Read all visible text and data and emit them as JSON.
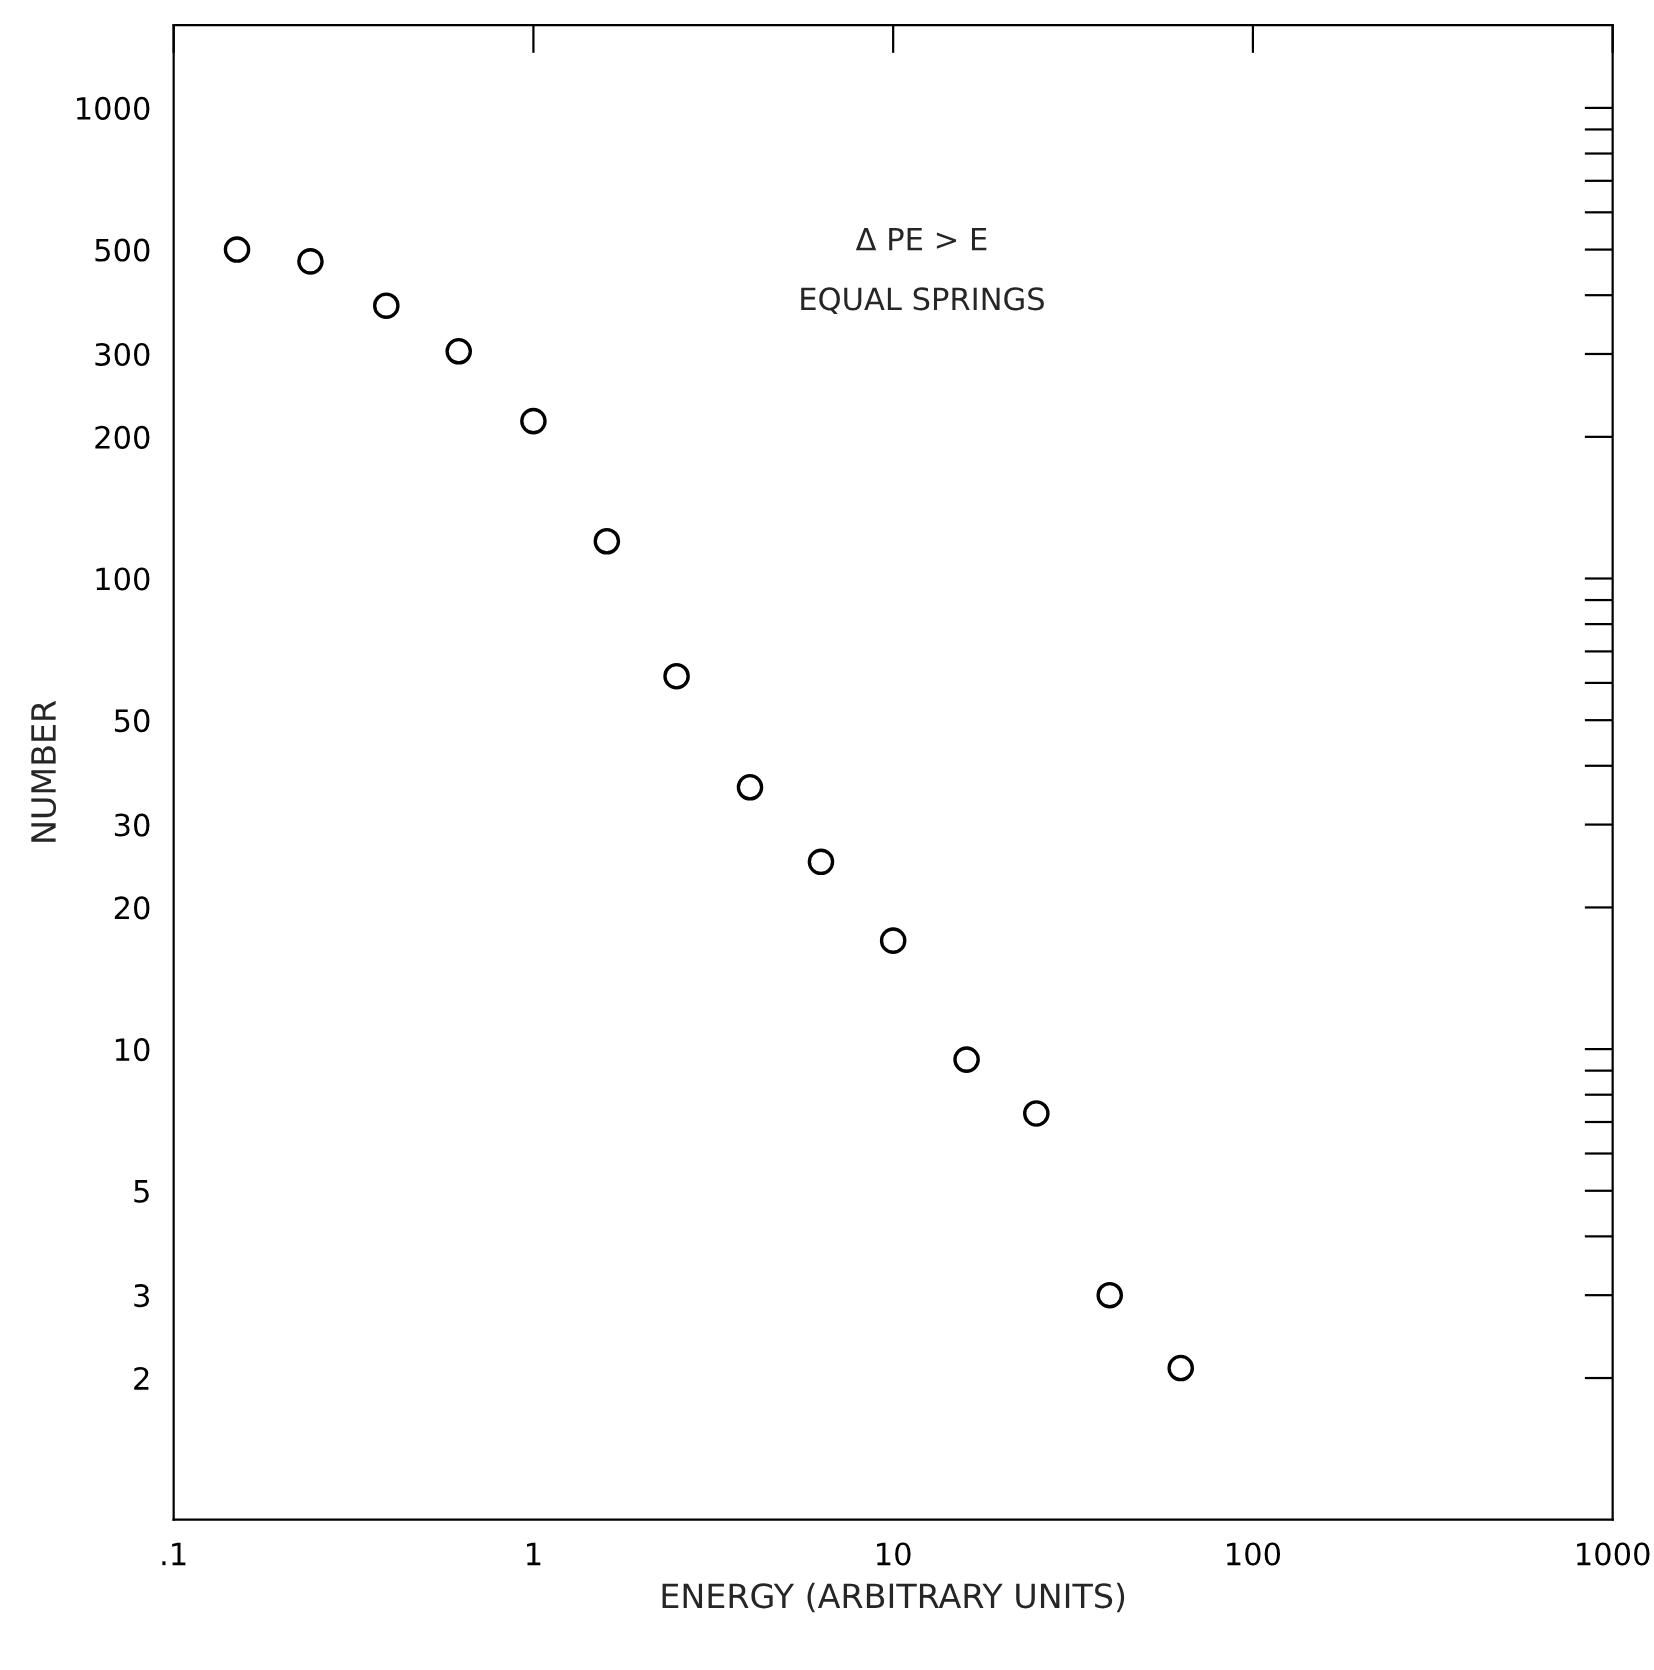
{
  "chart_data": {
    "type": "scatter",
    "xlabel": "ENERGY (ARBITRARY UNITS)",
    "ylabel": "NUMBER",
    "annotations": [
      "Δ PE > E",
      "EQUAL SPRINGS"
    ],
    "log": "xy",
    "grid": false,
    "marker": "circle",
    "xlim": [
      0.1,
      1000
    ],
    "ylim": [
      1,
      1500
    ],
    "xticks": [
      {
        "value": 0.1,
        "label": ".1"
      },
      1,
      10,
      100,
      1000
    ],
    "yticks": [
      2,
      3,
      {
        "value": 4,
        "label": null
      },
      5,
      {
        "value": 6,
        "label": null
      },
      {
        "value": 7,
        "label": null
      },
      {
        "value": 8,
        "label": null
      },
      {
        "value": 9,
        "label": null
      },
      10,
      20,
      30,
      {
        "value": 40,
        "label": null
      },
      50,
      {
        "value": 60,
        "label": null
      },
      {
        "value": 70,
        "label": null
      },
      {
        "value": 80,
        "label": null
      },
      {
        "value": 90,
        "label": null
      },
      100,
      200,
      300,
      {
        "value": 400,
        "label": null
      },
      500,
      {
        "value": 600,
        "label": null
      },
      {
        "value": 700,
        "label": null
      },
      {
        "value": 800,
        "label": null
      },
      {
        "value": 900,
        "label": null
      },
      1000
    ],
    "series": [
      {
        "color": "#000000",
        "x": [
          0.15,
          0.24,
          0.39,
          0.62,
          1,
          1.6,
          2.5,
          4,
          6.3,
          10,
          16,
          25,
          40,
          63
        ],
        "values": [
          500,
          472,
          380,
          304,
          216,
          120,
          62,
          36,
          25,
          17,
          9.5,
          7.3,
          3.0,
          2.1
        ]
      }
    ]
  }
}
